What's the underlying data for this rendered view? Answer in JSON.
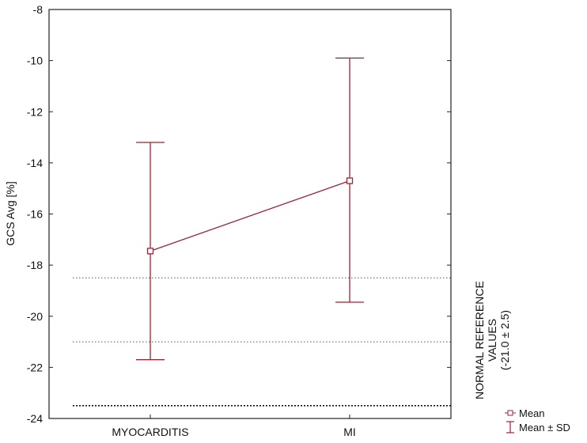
{
  "chart_data": {
    "type": "line",
    "title": "",
    "xlabel": "",
    "ylabel": "GCS Avg [%]",
    "categories": [
      "MYOCARDITIS",
      "MI"
    ],
    "ylim": [
      -24,
      -8
    ],
    "yticks": [
      -8,
      -10,
      -12,
      -14,
      -16,
      -18,
      -20,
      -22,
      -24
    ],
    "ytick_labels": [
      "-8",
      "-10",
      "-12",
      "-14",
      "-16",
      "-18",
      "-20",
      "-22",
      "-24"
    ],
    "series": [
      {
        "name": "Mean",
        "values": [
          -17.45,
          -14.7
        ],
        "sd_lower": [
          -21.7,
          -19.45
        ],
        "sd_upper": [
          -13.2,
          -9.9
        ],
        "color": "#9b2335"
      }
    ],
    "reference_lines": [
      {
        "value": -18.5,
        "style": "dotted"
      },
      {
        "value": -21.0,
        "style": "dotted"
      },
      {
        "value": -23.5,
        "style": "dotted"
      }
    ],
    "reference_label": [
      "NORMAL REFERENCE",
      "VALUES",
      "(-21.0 ± 2.5)"
    ],
    "legend": {
      "placement": "bottom-right",
      "entries": [
        {
          "label": "Mean",
          "marker": "square"
        },
        {
          "label": "Mean ± SD",
          "marker": "errorbar"
        }
      ]
    },
    "grid": false
  }
}
